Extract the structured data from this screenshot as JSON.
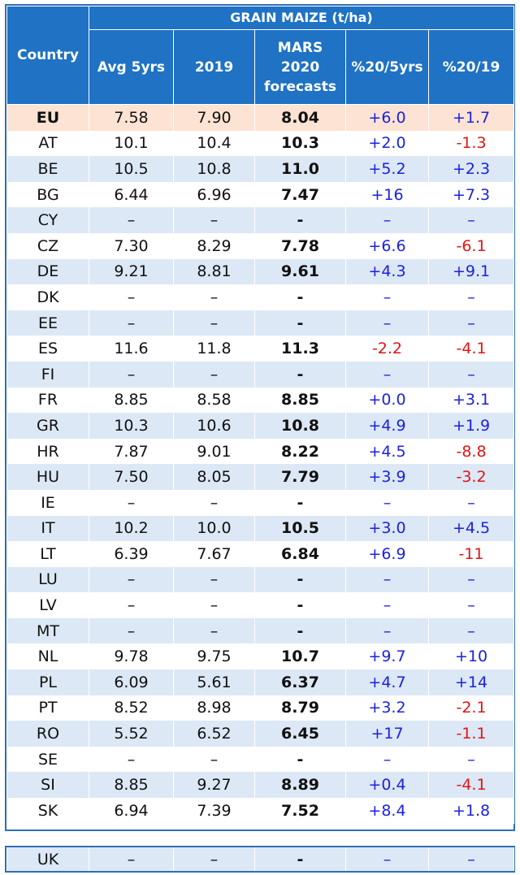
{
  "header": {
    "group_title": "GRAIN MAIZE (t/ha)",
    "country": "Country",
    "avg5": "Avg 5yrs",
    "y2019": "2019",
    "forecast_line1": "MARS",
    "forecast_line2": "2020",
    "forecast_line3": "forecasts",
    "pct5": "%20/5yrs",
    "pct19": "%20/19"
  },
  "colors": {
    "header_bg": "#1f72c4",
    "alt_row": "#dce8f5",
    "eu_row": "#fde3d3",
    "positive": "#1a22e0",
    "negative": "#e01515"
  },
  "rows": [
    {
      "country": "EU",
      "avg5": "7.58",
      "y2019": "7.90",
      "fc": "8.04",
      "p5": "+6.0",
      "p19": "+1.7"
    },
    {
      "country": "AT",
      "avg5": "10.1",
      "y2019": "10.4",
      "fc": "10.3",
      "p5": "+2.0",
      "p19": "-1.3"
    },
    {
      "country": "BE",
      "avg5": "10.5",
      "y2019": "10.8",
      "fc": "11.0",
      "p5": "+5.2",
      "p19": "+2.3"
    },
    {
      "country": "BG",
      "avg5": "6.44",
      "y2019": "6.96",
      "fc": "7.47",
      "p5": "+16",
      "p19": "+7.3"
    },
    {
      "country": "CY",
      "avg5": "–",
      "y2019": "–",
      "fc": "-",
      "p5": "–",
      "p19": "–"
    },
    {
      "country": "CZ",
      "avg5": "7.30",
      "y2019": "8.29",
      "fc": "7.78",
      "p5": "+6.6",
      "p19": "-6.1"
    },
    {
      "country": "DE",
      "avg5": "9.21",
      "y2019": "8.81",
      "fc": "9.61",
      "p5": "+4.3",
      "p19": "+9.1"
    },
    {
      "country": "DK",
      "avg5": "–",
      "y2019": "–",
      "fc": "-",
      "p5": "–",
      "p19": "–"
    },
    {
      "country": "EE",
      "avg5": "–",
      "y2019": "–",
      "fc": "-",
      "p5": "–",
      "p19": "–"
    },
    {
      "country": "ES",
      "avg5": "11.6",
      "y2019": "11.8",
      "fc": "11.3",
      "p5": "-2.2",
      "p19": "-4.1"
    },
    {
      "country": "FI",
      "avg5": "–",
      "y2019": "–",
      "fc": "-",
      "p5": "–",
      "p19": "–"
    },
    {
      "country": "FR",
      "avg5": "8.85",
      "y2019": "8.58",
      "fc": "8.85",
      "p5": "+0.0",
      "p19": "+3.1"
    },
    {
      "country": "GR",
      "avg5": "10.3",
      "y2019": "10.6",
      "fc": "10.8",
      "p5": "+4.9",
      "p19": "+1.9"
    },
    {
      "country": "HR",
      "avg5": "7.87",
      "y2019": "9.01",
      "fc": "8.22",
      "p5": "+4.5",
      "p19": "-8.8"
    },
    {
      "country": "HU",
      "avg5": "7.50",
      "y2019": "8.05",
      "fc": "7.79",
      "p5": "+3.9",
      "p19": "-3.2"
    },
    {
      "country": "IE",
      "avg5": "–",
      "y2019": "–",
      "fc": "-",
      "p5": "–",
      "p19": "–"
    },
    {
      "country": "IT",
      "avg5": "10.2",
      "y2019": "10.0",
      "fc": "10.5",
      "p5": "+3.0",
      "p19": "+4.5"
    },
    {
      "country": "LT",
      "avg5": "6.39",
      "y2019": "7.67",
      "fc": "6.84",
      "p5": "+6.9",
      "p19": "-11"
    },
    {
      "country": "LU",
      "avg5": "–",
      "y2019": "–",
      "fc": "-",
      "p5": "–",
      "p19": "–"
    },
    {
      "country": "LV",
      "avg5": "–",
      "y2019": "–",
      "fc": "-",
      "p5": "–",
      "p19": "–"
    },
    {
      "country": "MT",
      "avg5": "–",
      "y2019": "–",
      "fc": "-",
      "p5": "–",
      "p19": "–"
    },
    {
      "country": "NL",
      "avg5": "9.78",
      "y2019": "9.75",
      "fc": "10.7",
      "p5": "+9.7",
      "p19": "+10"
    },
    {
      "country": "PL",
      "avg5": "6.09",
      "y2019": "5.61",
      "fc": "6.37",
      "p5": "+4.7",
      "p19": "+14"
    },
    {
      "country": "PT",
      "avg5": "8.52",
      "y2019": "8.98",
      "fc": "8.79",
      "p5": "+3.2",
      "p19": "-2.1"
    },
    {
      "country": "RO",
      "avg5": "5.52",
      "y2019": "6.52",
      "fc": "6.45",
      "p5": "+17",
      "p19": "-1.1"
    },
    {
      "country": "SE",
      "avg5": "–",
      "y2019": "–",
      "fc": "-",
      "p5": "–",
      "p19": "–"
    },
    {
      "country": "SI",
      "avg5": "8.85",
      "y2019": "9.27",
      "fc": "8.89",
      "p5": "+0.4",
      "p19": "-4.1"
    },
    {
      "country": "SK",
      "avg5": "6.94",
      "y2019": "7.39",
      "fc": "7.52",
      "p5": "+8.4",
      "p19": "+1.8"
    }
  ],
  "uk_row": {
    "country": "UK",
    "avg5": "–",
    "y2019": "–",
    "fc": "-",
    "p5": "–",
    "p19": "–"
  }
}
